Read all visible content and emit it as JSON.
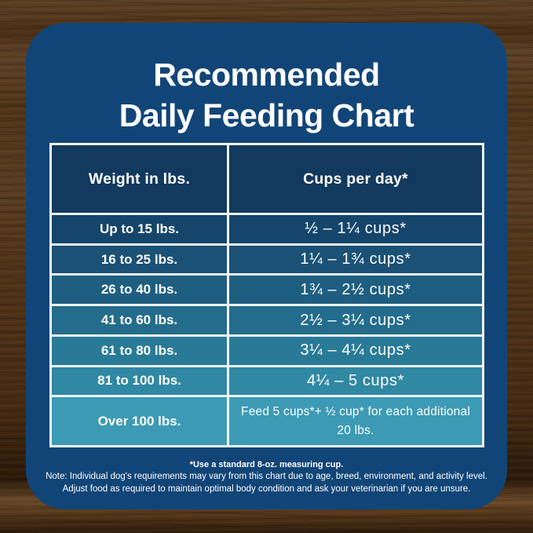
{
  "title": {
    "line1": "Recommended",
    "line2": "Daily Feeding Chart"
  },
  "chart_data": {
    "type": "table",
    "title": "Recommended Daily Feeding Chart",
    "columns": [
      "Weight in lbs.",
      "Cups per day*"
    ],
    "rows": [
      [
        "Up to 15 lbs.",
        "½ – 1¼ cups*"
      ],
      [
        "16 to 25 lbs.",
        "1¼ – 1¾ cups*"
      ],
      [
        "26 to 40 lbs.",
        "1¾ – 2½ cups*"
      ],
      [
        "41 to 60 lbs.",
        "2½ – 3¼ cups*"
      ],
      [
        "61 to 80 lbs.",
        "3¼ – 4¼ cups*"
      ],
      [
        "81 to 100 lbs.",
        "4¼ – 5 cups*"
      ],
      [
        "Over 100 lbs.",
        "Feed 5 cups*+ ½ cup* for each additional 20 lbs."
      ]
    ],
    "footnote": "*Use a standard 8-oz. measuring cup."
  },
  "footnotes": {
    "line1": "*Use a standard 8-oz. measuring cup.",
    "line2": "Note: Individual dog's requirements may vary from this chart due to age, breed, environment, and activity level.",
    "line3": "Adjust food as required to maintain optimal body condition and ask your veterinarian if you are unsure."
  },
  "colors": {
    "card_background": "#124577",
    "header_row": "#12395E",
    "border": "#EFF3F6",
    "text": "#FFFFFF",
    "row_gradient": [
      "#15456B",
      "#1A5175",
      "#1E5E80",
      "#246C8C",
      "#297A97",
      "#3088A3",
      "#3C9AB4"
    ]
  }
}
